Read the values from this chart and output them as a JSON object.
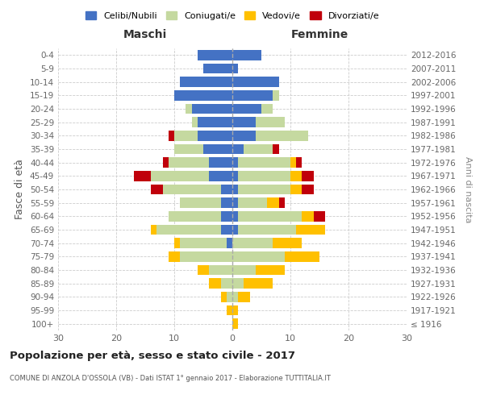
{
  "age_groups": [
    "100+",
    "95-99",
    "90-94",
    "85-89",
    "80-84",
    "75-79",
    "70-74",
    "65-69",
    "60-64",
    "55-59",
    "50-54",
    "45-49",
    "40-44",
    "35-39",
    "30-34",
    "25-29",
    "20-24",
    "15-19",
    "10-14",
    "5-9",
    "0-4"
  ],
  "birth_years": [
    "≤ 1916",
    "1917-1921",
    "1922-1926",
    "1927-1931",
    "1932-1936",
    "1937-1941",
    "1942-1946",
    "1947-1951",
    "1952-1956",
    "1957-1961",
    "1962-1966",
    "1967-1971",
    "1972-1976",
    "1977-1981",
    "1982-1986",
    "1987-1991",
    "1992-1996",
    "1997-2001",
    "2002-2006",
    "2007-2011",
    "2012-2016"
  ],
  "maschi": {
    "celibi": [
      0,
      0,
      0,
      0,
      0,
      0,
      1,
      2,
      2,
      2,
      2,
      4,
      4,
      5,
      6,
      6,
      7,
      10,
      9,
      5,
      6
    ],
    "coniugati": [
      0,
      0,
      1,
      2,
      4,
      9,
      8,
      11,
      9,
      7,
      10,
      10,
      7,
      5,
      4,
      1,
      1,
      0,
      0,
      0,
      0
    ],
    "vedovi": [
      0,
      1,
      1,
      2,
      2,
      2,
      1,
      1,
      0,
      0,
      0,
      0,
      0,
      0,
      0,
      0,
      0,
      0,
      0,
      0,
      0
    ],
    "divorziati": [
      0,
      0,
      0,
      0,
      0,
      0,
      0,
      0,
      0,
      0,
      2,
      3,
      1,
      0,
      1,
      0,
      0,
      0,
      0,
      0,
      0
    ]
  },
  "femmine": {
    "nubili": [
      0,
      0,
      0,
      0,
      0,
      0,
      0,
      1,
      1,
      1,
      1,
      1,
      1,
      2,
      4,
      4,
      5,
      7,
      8,
      1,
      5
    ],
    "coniugate": [
      0,
      0,
      1,
      2,
      4,
      9,
      7,
      10,
      11,
      5,
      9,
      9,
      9,
      5,
      9,
      5,
      2,
      1,
      0,
      0,
      0
    ],
    "vedove": [
      1,
      1,
      2,
      5,
      5,
      6,
      5,
      5,
      2,
      2,
      2,
      2,
      1,
      0,
      0,
      0,
      0,
      0,
      0,
      0,
      0
    ],
    "divorziate": [
      0,
      0,
      0,
      0,
      0,
      0,
      0,
      0,
      2,
      1,
      2,
      2,
      1,
      1,
      0,
      0,
      0,
      0,
      0,
      0,
      0
    ]
  },
  "colors": {
    "celibi": "#4472c4",
    "coniugati": "#c5d9a0",
    "vedovi": "#ffc000",
    "divorziati": "#c0000b"
  },
  "xlim": 30,
  "title": "Popolazione per età, sesso e stato civile - 2017",
  "subtitle": "COMUNE DI ANZOLA D'OSSOLA (VB) - Dati ISTAT 1° gennaio 2017 - Elaborazione TUTTITALIA.IT",
  "ylabel_left": "Fasce di età",
  "ylabel_right": "Anni di nascita",
  "xlabel_left": "Maschi",
  "xlabel_right": "Femmine",
  "bg_color": "#ffffff",
  "grid_color": "#cccccc",
  "legend_labels": [
    "Celibi/Nubili",
    "Coniugati/e",
    "Vedovi/e",
    "Divorziati/e"
  ]
}
